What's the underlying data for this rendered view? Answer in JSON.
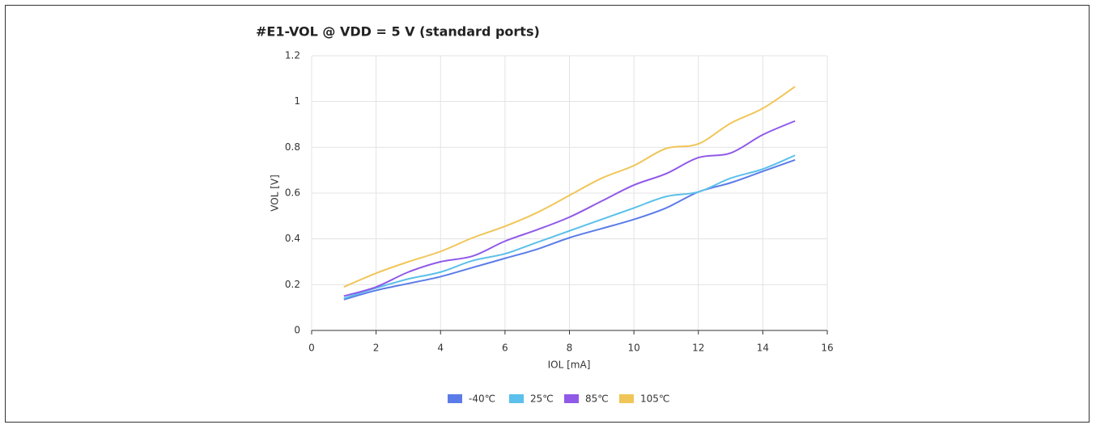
{
  "chart_data": {
    "type": "line",
    "title": "#E1-VOL @ VDD = 5 V  (standard ports)",
    "x_label": "IOL [mA]",
    "y_label": "VOL [V]",
    "x": [
      1,
      2,
      3,
      4,
      5,
      6,
      7,
      8,
      9,
      10,
      11,
      12,
      13,
      14,
      15
    ],
    "series": [
      {
        "name": "-40℃",
        "color": "#5b7ce8",
        "values": [
          0.135,
          0.175,
          0.205,
          0.235,
          0.275,
          0.315,
          0.355,
          0.405,
          0.445,
          0.485,
          0.535,
          0.605,
          0.645,
          0.695,
          0.745
        ]
      },
      {
        "name": "25℃",
        "color": "#5bc0eb",
        "values": [
          0.14,
          0.185,
          0.225,
          0.255,
          0.305,
          0.335,
          0.385,
          0.435,
          0.485,
          0.535,
          0.585,
          0.605,
          0.665,
          0.705,
          0.765
        ]
      },
      {
        "name": "85℃",
        "color": "#9059e8",
        "values": [
          0.15,
          0.19,
          0.255,
          0.3,
          0.325,
          0.39,
          0.44,
          0.495,
          0.565,
          0.635,
          0.685,
          0.755,
          0.775,
          0.855,
          0.915
        ]
      },
      {
        "name": "105℃",
        "color": "#f0c659",
        "values": [
          0.19,
          0.25,
          0.3,
          0.345,
          0.405,
          0.455,
          0.515,
          0.59,
          0.665,
          0.72,
          0.795,
          0.815,
          0.905,
          0.97,
          1.065
        ]
      }
    ],
    "xlim": [
      0,
      16
    ],
    "xticks": [
      0,
      2,
      4,
      6,
      8,
      10,
      12,
      14,
      16
    ],
    "ylim": [
      0,
      1.2
    ],
    "yticks": [
      0,
      0.2,
      0.4,
      0.6,
      0.8,
      1,
      1.2
    ],
    "grid": true,
    "legend": "bottom"
  }
}
